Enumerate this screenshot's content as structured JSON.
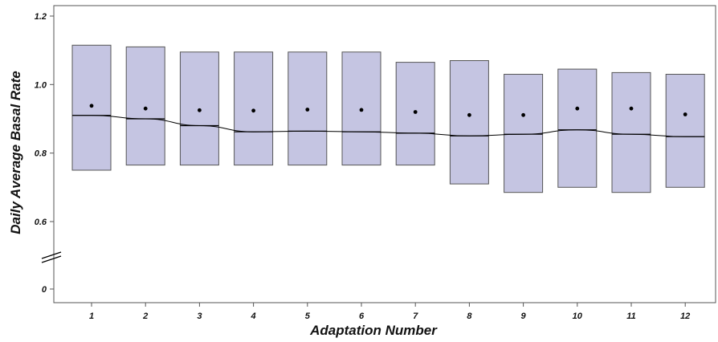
{
  "chart_data": {
    "type": "box",
    "title": "",
    "xlabel": "Adaptation Number",
    "ylabel": "Daily Average Basal Rate",
    "categories": [
      "1",
      "2",
      "3",
      "4",
      "5",
      "6",
      "7",
      "8",
      "9",
      "10",
      "11",
      "12"
    ],
    "box_low": [
      0.75,
      0.765,
      0.765,
      0.765,
      0.765,
      0.765,
      0.765,
      0.71,
      0.685,
      0.7,
      0.685,
      0.7
    ],
    "box_high": [
      1.115,
      1.11,
      1.095,
      1.095,
      1.095,
      1.095,
      1.065,
      1.07,
      1.03,
      1.045,
      1.035,
      1.03
    ],
    "median": [
      0.91,
      0.9,
      0.88,
      0.862,
      0.864,
      0.862,
      0.858,
      0.85,
      0.855,
      0.868,
      0.855,
      0.848
    ],
    "mean": [
      0.938,
      0.93,
      0.925,
      0.924,
      0.927,
      0.926,
      0.92,
      0.911,
      0.911,
      0.93,
      0.93,
      0.913
    ],
    "yticks": [
      "0",
      "0.6",
      "0.8",
      "1.0",
      "1.2"
    ],
    "axis_break": true,
    "ylim_upper": [
      0.5,
      1.2
    ],
    "box_color": "#c5c5e2",
    "box_edge_color": "#555555",
    "line_color": "#000000"
  }
}
